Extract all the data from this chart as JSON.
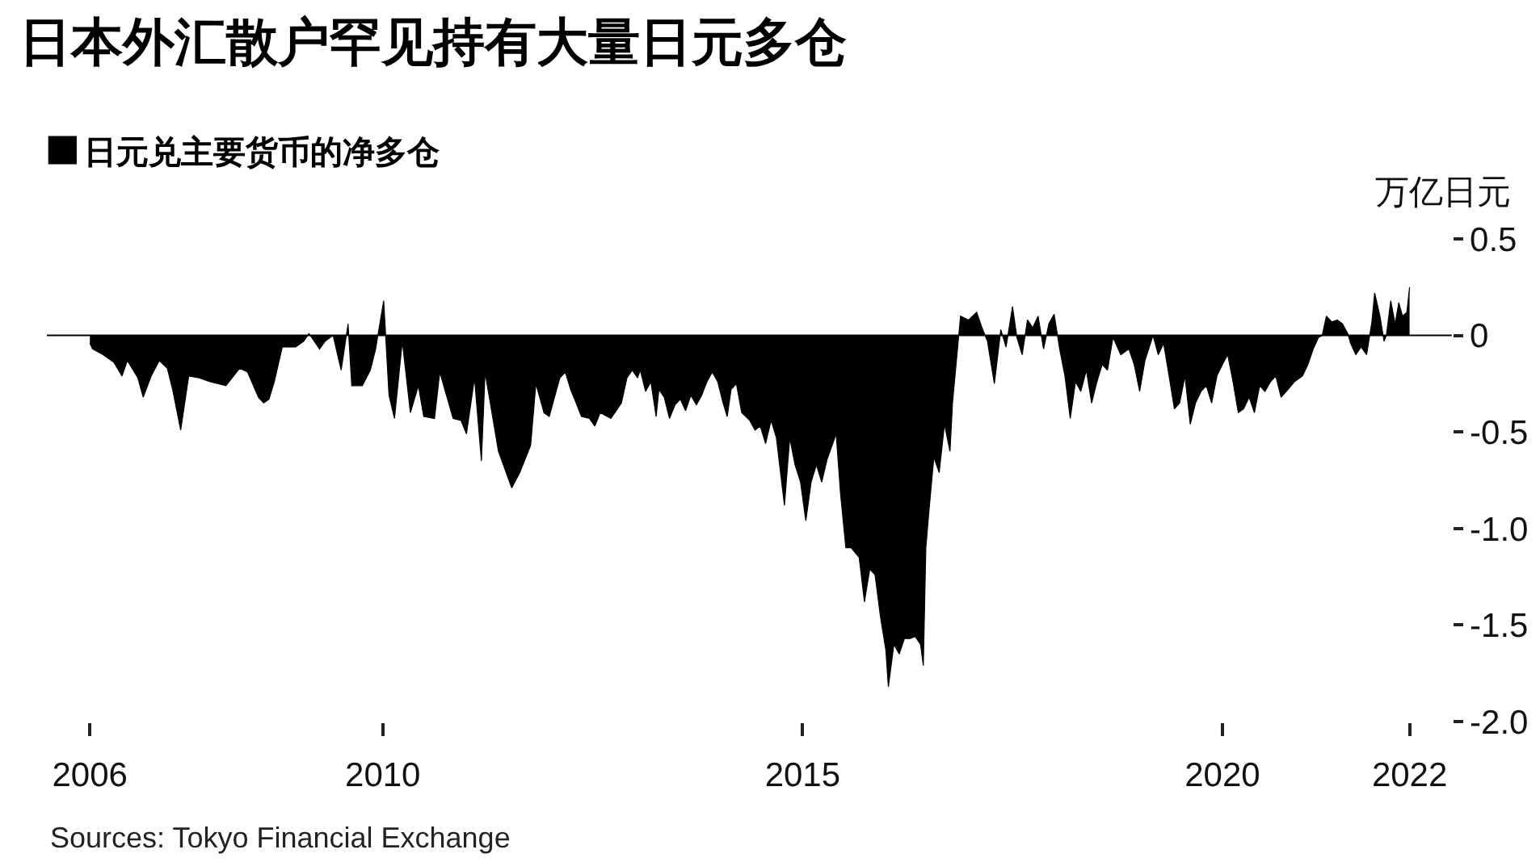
{
  "chart_data": {
    "type": "area",
    "title": "日本外汇散户罕见持有大量日元多仓",
    "ylabel": "万亿日元",
    "annotations": [
      "Sources: Tokyo Financial Exchange"
    ],
    "legend": "top left",
    "xlim": [
      "2006-01-01",
      "2022-09-24"
    ],
    "xticks": [
      {
        "value": "2006-07-07",
        "label": "2006"
      },
      {
        "value": "2010-01-01",
        "label": "2010"
      },
      {
        "value": "2015-01-01",
        "label": "2015"
      },
      {
        "value": "2020-01-01",
        "label": "2020"
      },
      {
        "value": "2022-03-25",
        "label": "2022"
      }
    ],
    "ylim": [
      -2.0,
      0.5
    ],
    "yticks": [
      {
        "value": -2,
        "label": "-2.0"
      },
      -1.5,
      {
        "value": -1,
        "label": "-1.0"
      },
      -0.5,
      0,
      0.5
    ],
    "ref_lines": [
      {
        "axis": "y",
        "value": 0,
        "color": "#000000"
      }
    ],
    "x": [
      "2006-07-07",
      "2006-07-19",
      "2006-09-03",
      "2006-10-20",
      "2006-11-24",
      "2006-12-17",
      "2007-02-01",
      "2007-02-24",
      "2007-03-31",
      "2007-05-05",
      "2007-06-09",
      "2007-07-02",
      "2007-08-06",
      "2007-09-10",
      "2007-10-26",
      "2007-12-12",
      "2008-02-19",
      "2008-04-18",
      "2008-05-23",
      "2008-07-09",
      "2008-08-01",
      "2008-08-24",
      "2008-09-16",
      "2008-10-21",
      "2008-12-18",
      "2009-01-22",
      "2009-02-14",
      "2009-04-01",
      "2009-04-25",
      "2009-05-30",
      "2009-07-04",
      "2009-08-03",
      "2009-08-19",
      "2009-10-04",
      "2009-11-08",
      "2009-12-01",
      "2010-01-05",
      "2010-01-28",
      "2010-02-21",
      "2010-03-27",
      "2010-05-01",
      "2010-06-05",
      "2010-06-28",
      "2010-08-14",
      "2010-09-06",
      "2010-11-03",
      "2010-12-07",
      "2010-12-31",
      "2011-02-04",
      "2011-03-06",
      "2011-03-22",
      "2011-05-19",
      "2011-07-16",
      "2011-08-20",
      "2011-10-06",
      "2011-10-29",
      "2011-12-03",
      "2011-12-26",
      "2012-01-18",
      "2012-02-10",
      "2012-03-05",
      "2012-03-28",
      "2012-04-21",
      "2012-05-14",
      "2012-06-18",
      "2012-07-11",
      "2012-08-04",
      "2012-09-19",
      "2012-11-04",
      "2012-11-28",
      "2012-12-21",
      "2013-01-13",
      "2013-01-25",
      "2013-02-17",
      "2013-03-12",
      "2013-04-04",
      "2013-04-16",
      "2013-05-09",
      "2013-06-01",
      "2013-06-25",
      "2013-07-18",
      "2013-08-10",
      "2013-09-02",
      "2013-09-26",
      "2013-10-19",
      "2013-11-11",
      "2013-12-04",
      "2013-12-28",
      "2014-01-20",
      "2014-02-07",
      "2014-02-24",
      "2014-03-19",
      "2014-04-11",
      "2014-05-16",
      "2014-06-08",
      "2014-07-01",
      "2014-07-24",
      "2014-08-17",
      "2014-09-09",
      "2014-10-14",
      "2014-11-06",
      "2014-11-29",
      "2014-12-23",
      "2015-01-15",
      "2015-02-07",
      "2015-03-02",
      "2015-03-25",
      "2015-04-18",
      "2015-05-27",
      "2015-06-15",
      "2015-07-08",
      "2015-07-31",
      "2015-09-04",
      "2015-09-27",
      "2015-10-20",
      "2015-11-12",
      "2015-12-06",
      "2015-12-29",
      "2016-01-09",
      "2016-02-02",
      "2016-02-25",
      "2016-03-19",
      "2016-04-12",
      "2016-05-05",
      "2016-05-28",
      "2016-06-09",
      "2016-06-20",
      "2016-07-02",
      "2016-07-25",
      "2016-08-17",
      "2016-09-09",
      "2016-10-03",
      "2016-10-14",
      "2016-11-07",
      "2016-11-18",
      "2016-12-23",
      "2017-01-27",
      "2017-02-19",
      "2017-03-15",
      "2017-04-14",
      "2017-05-12",
      "2017-06-04",
      "2017-07-02",
      "2017-07-21",
      "2017-08-13",
      "2017-09-05",
      "2017-09-28",
      "2017-10-21",
      "2017-11-14",
      "2017-12-07",
      "2017-12-30",
      "2018-01-23",
      "2018-02-15",
      "2018-03-10",
      "2018-04-02",
      "2018-04-25",
      "2018-05-19",
      "2018-06-11",
      "2018-07-04",
      "2018-07-27",
      "2018-08-19",
      "2018-09-12",
      "2018-10-16",
      "2018-11-20",
      "2018-12-13",
      "2019-01-06",
      "2019-01-29",
      "2019-03-05",
      "2019-03-28",
      "2019-04-20",
      "2019-05-14",
      "2019-06-06",
      "2019-06-29",
      "2019-07-22",
      "2019-08-14",
      "2019-09-06",
      "2019-09-30",
      "2019-10-23",
      "2019-11-15",
      "2019-12-08",
      "2020-01-01",
      "2020-01-24",
      "2020-02-16",
      "2020-03-10",
      "2020-04-02",
      "2020-04-26",
      "2020-05-19",
      "2020-06-11",
      "2020-07-04",
      "2020-07-28",
      "2020-08-20",
      "2020-09-12",
      "2020-10-05",
      "2020-11-09",
      "2020-12-14",
      "2021-01-07",
      "2021-01-30",
      "2021-02-22",
      "2021-03-10",
      "2021-03-28",
      "2021-04-21",
      "2021-05-14",
      "2021-06-06",
      "2021-06-29",
      "2021-07-11",
      "2021-08-03",
      "2021-08-26",
      "2021-09-19",
      "2021-10-12",
      "2021-10-24",
      "2021-11-16",
      "2021-12-04",
      "2021-12-14",
      "2022-01-02",
      "2022-01-21",
      "2022-02-06",
      "2022-02-22",
      "2022-03-13",
      "2022-03-25"
    ],
    "series": [
      {
        "name": "日元兑主要货币的净多仓",
        "color": "#000000",
        "values": [
          -0.04,
          -0.07,
          -0.1,
          -0.14,
          -0.21,
          -0.13,
          -0.22,
          -0.32,
          -0.21,
          -0.13,
          -0.17,
          -0.28,
          -0.49,
          -0.21,
          -0.22,
          -0.24,
          -0.26,
          -0.17,
          -0.19,
          -0.32,
          -0.35,
          -0.33,
          -0.24,
          -0.06,
          -0.06,
          -0.03,
          0.01,
          -0.07,
          -0.03,
          0,
          -0.18,
          0.06,
          -0.26,
          -0.26,
          -0.18,
          -0.07,
          0.18,
          -0.31,
          -0.43,
          -0.03,
          -0.4,
          -0.26,
          -0.42,
          -0.43,
          -0.19,
          -0.43,
          -0.44,
          -0.51,
          -0.22,
          -0.65,
          -0.19,
          -0.6,
          -0.79,
          -0.71,
          -0.57,
          -0.25,
          -0.4,
          -0.42,
          -0.32,
          -0.22,
          -0.19,
          -0.28,
          -0.35,
          -0.42,
          -0.43,
          -0.47,
          -0.4,
          -0.43,
          -0.35,
          -0.22,
          -0.18,
          -0.22,
          -0.18,
          -0.29,
          -0.24,
          -0.42,
          -0.28,
          -0.32,
          -0.43,
          -0.36,
          -0.33,
          -0.39,
          -0.31,
          -0.36,
          -0.31,
          -0.24,
          -0.19,
          -0.24,
          -0.35,
          -0.42,
          -0.28,
          -0.25,
          -0.4,
          -0.44,
          -0.49,
          -0.47,
          -0.56,
          -0.44,
          -0.53,
          -0.88,
          -0.53,
          -0.67,
          -0.76,
          -0.96,
          -0.76,
          -0.67,
          -0.76,
          -0.64,
          -0.51,
          -0.82,
          -1.1,
          -1.1,
          -1.15,
          -1.38,
          -1.21,
          -1.24,
          -1.46,
          -1.63,
          -1.82,
          -1.6,
          -1.65,
          -1.57,
          -1.57,
          -1.56,
          -1.6,
          -1.71,
          -1.1,
          -0.93,
          -0.63,
          -0.71,
          -0.46,
          -0.6,
          -0.35,
          -0.04,
          0.1,
          0.08,
          0.12,
          0.04,
          -0.03,
          -0.25,
          0.03,
          -0.06,
          0.15,
          -0.01,
          -0.1,
          0.08,
          0.04,
          0.1,
          -0.07,
          0.06,
          0.11,
          -0.07,
          -0.21,
          -0.43,
          -0.24,
          -0.29,
          -0.18,
          -0.35,
          -0.24,
          -0.15,
          -0.18,
          -0.01,
          -0.1,
          -0.07,
          -0.15,
          -0.29,
          -0.13,
          0,
          -0.1,
          -0.04,
          -0.21,
          -0.38,
          -0.35,
          -0.21,
          -0.46,
          -0.35,
          -0.29,
          -0.26,
          -0.35,
          -0.21,
          -0.15,
          -0.1,
          -0.24,
          -0.4,
          -0.38,
          -0.32,
          -0.4,
          -0.26,
          -0.29,
          -0.24,
          -0.21,
          -0.32,
          -0.29,
          -0.24,
          -0.21,
          -0.15,
          -0.07,
          -0.01,
          0,
          0.1,
          0.07,
          0.08,
          0.06,
          0.01,
          -0.04,
          -0.1,
          -0.06,
          -0.1,
          0.07,
          0.22,
          0.1,
          -0.03,
          0,
          0.18,
          0.06,
          0.17,
          0.1,
          0.12,
          0.25
        ]
      }
    ]
  }
}
